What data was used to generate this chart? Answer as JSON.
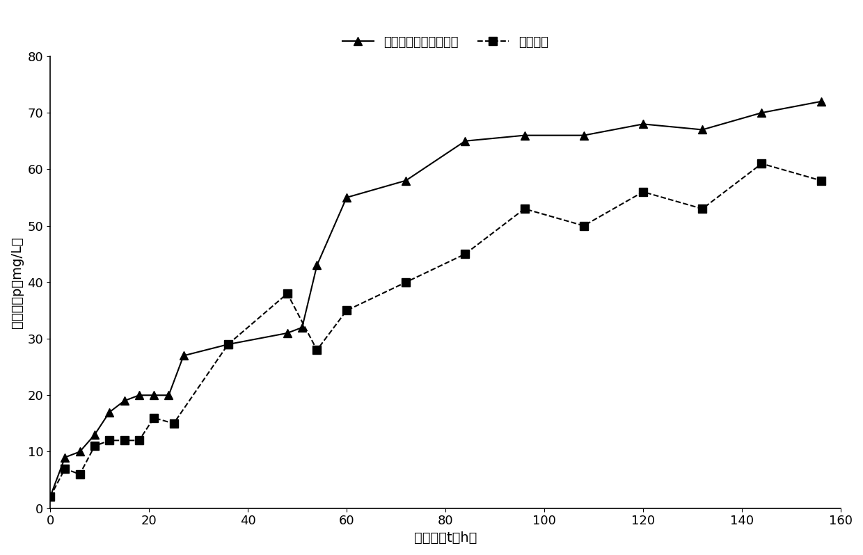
{
  "legend_label1": "产物生成最优温度控制",
  "legend_label2": "恒温对照",
  "xlabel": "发酵时间t（h）",
  "ylabel": "产物浓度p（mg/L）",
  "xlim": [
    0,
    160
  ],
  "ylim": [
    0,
    80
  ],
  "xticks": [
    0,
    20,
    40,
    60,
    80,
    100,
    120,
    140,
    160
  ],
  "yticks": [
    0,
    10,
    20,
    30,
    40,
    50,
    60,
    70,
    80
  ],
  "series1_x": [
    0,
    3,
    6,
    9,
    12,
    15,
    18,
    21,
    24,
    27,
    36,
    48,
    51,
    54,
    60,
    72,
    84,
    96,
    108,
    120,
    132,
    144,
    156
  ],
  "series1_y": [
    2,
    9,
    10,
    13,
    17,
    19,
    20,
    20,
    20,
    27,
    29,
    31,
    32,
    43,
    55,
    58,
    65,
    66,
    66,
    68,
    67,
    70,
    72
  ],
  "series2_x": [
    0,
    3,
    6,
    9,
    12,
    15,
    18,
    21,
    25,
    36,
    48,
    54,
    60,
    72,
    84,
    96,
    108,
    120,
    132,
    144,
    156
  ],
  "series2_y": [
    2,
    7,
    6,
    11,
    12,
    12,
    12,
    16,
    15,
    29,
    38,
    28,
    35,
    40,
    45,
    53,
    50,
    56,
    53,
    61,
    58
  ],
  "line_color": "#000000",
  "bg_color": "#ffffff",
  "legend_fontsize": 13,
  "axis_fontsize": 14,
  "tick_fontsize": 13
}
